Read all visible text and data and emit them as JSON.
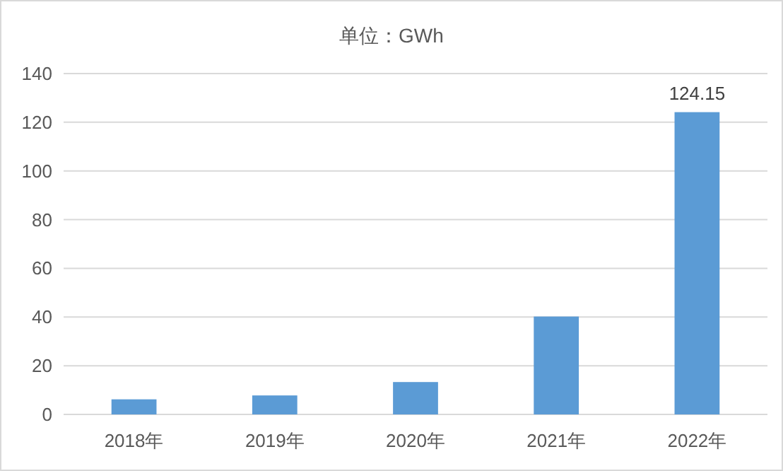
{
  "chart_data": {
    "type": "bar",
    "title": "单位：GWh",
    "categories": [
      "2018年",
      "2019年",
      "2020年",
      "2021年",
      "2022年"
    ],
    "values": [
      6.2,
      7.8,
      13.3,
      40.2,
      124.15
    ],
    "value_labels": [
      null,
      null,
      null,
      null,
      "124.15"
    ],
    "color": "#5b9bd5",
    "ylim": [
      0,
      140
    ],
    "yticks": [
      0,
      20,
      40,
      60,
      80,
      100,
      120,
      140
    ],
    "grid": "y"
  }
}
